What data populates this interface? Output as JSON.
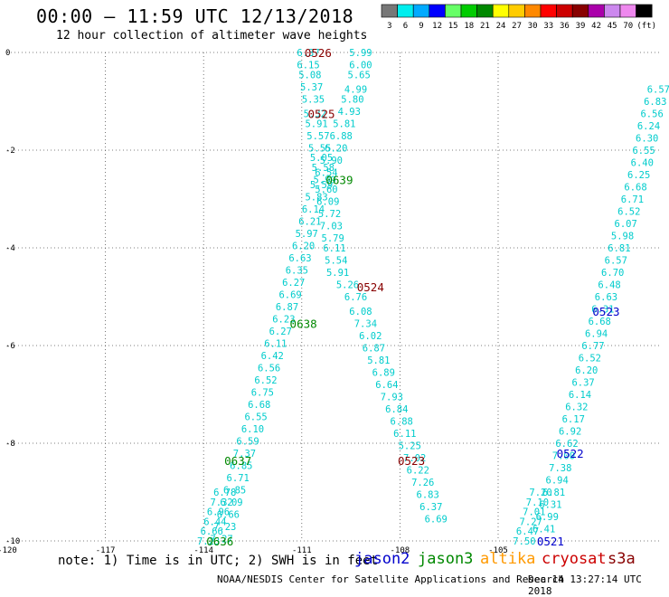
{
  "header": {
    "title": "00:00 – 11:59 UTC 12/13/2018",
    "subtitle": "12 hour collection of altimeter wave heights"
  },
  "color_scale": {
    "unit": "(ft)",
    "bins": [
      {
        "label": "3",
        "color": "#777777"
      },
      {
        "label": "6",
        "color": "#00eeee"
      },
      {
        "label": "9",
        "color": "#00aaff"
      },
      {
        "label": "12",
        "color": "#0000ff"
      },
      {
        "label": "15",
        "color": "#66ff66"
      },
      {
        "label": "18",
        "color": "#00cc00"
      },
      {
        "label": "21",
        "color": "#008800"
      },
      {
        "label": "24",
        "color": "#ffff00"
      },
      {
        "label": "27",
        "color": "#ffcc00"
      },
      {
        "label": "30",
        "color": "#ff8800"
      },
      {
        "label": "33",
        "color": "#ff0000"
      },
      {
        "label": "36",
        "color": "#cc0000"
      },
      {
        "label": "39",
        "color": "#880000"
      },
      {
        "label": "42",
        "color": "#aa00aa"
      },
      {
        "label": "45",
        "color": "#cc88ee"
      },
      {
        "label": "70",
        "color": "#ee88ee"
      },
      {
        "label": "",
        "color": "#000000"
      }
    ]
  },
  "footer": {
    "note": "note: 1) Time is in UTC; 2) SWH is in feet",
    "satellites": [
      {
        "name": "jason2",
        "color": "#0000cc"
      },
      {
        "name": "jason3",
        "color": "#008800"
      },
      {
        "name": "altika",
        "color": "#ff9900"
      },
      {
        "name": "cryosat",
        "color": "#cc0000"
      },
      {
        "name": "s3a",
        "color": "#880000"
      }
    ],
    "credit": "NOAA/NESDIS Center for Satellite Applications and Research",
    "timestamp": "Dec 14 13:27:14 UTC 2018"
  },
  "chart_data": {
    "type": "scatter",
    "xlim": [
      -120,
      -100
    ],
    "ylim": [
      -10,
      0
    ],
    "x_ticks": [
      "-120",
      "-117",
      "-114",
      "-111",
      "-108",
      "-105"
    ],
    "x_tick_values": [
      -120,
      -117,
      -114,
      -111,
      -108,
      -105
    ],
    "y_ticks": [
      "0",
      "-2",
      "-4",
      "-6",
      "-8",
      "-10"
    ],
    "y_tick_values": [
      0,
      -2,
      -4,
      -6,
      -8,
      -10
    ],
    "grid": true,
    "point_color": "#00cccc",
    "tracks": [
      {
        "id": "a",
        "points": [
          [
            -110.8,
            0
          ],
          [
            -110.8,
            -0.25
          ],
          [
            -110.75,
            -0.45
          ],
          [
            -110.7,
            -0.7
          ],
          [
            -110.65,
            -0.95
          ],
          [
            -110.6,
            -1.25
          ],
          [
            -110.55,
            -1.45
          ],
          [
            -110.5,
            -1.7
          ],
          [
            -110.45,
            -1.95
          ],
          [
            -110.4,
            -2.15
          ],
          [
            -110.35,
            -2.35
          ],
          [
            -110.3,
            -2.6
          ],
          [
            -110.25,
            -2.8
          ],
          [
            -110.2,
            -3.05
          ],
          [
            -110.15,
            -3.3
          ],
          [
            -110.1,
            -3.55
          ],
          [
            -110.05,
            -3.8
          ],
          [
            -110.0,
            -4.0
          ],
          [
            -109.95,
            -4.25
          ],
          [
            -109.9,
            -4.5
          ],
          [
            -109.6,
            -4.75
          ],
          [
            -109.35,
            -5.0
          ],
          [
            -109.2,
            -5.3
          ],
          [
            -109.05,
            -5.55
          ],
          [
            -108.9,
            -5.8
          ],
          [
            -108.8,
            -6.05
          ],
          [
            -108.65,
            -6.3
          ],
          [
            -108.5,
            -6.55
          ],
          [
            -108.4,
            -6.8
          ],
          [
            -108.25,
            -7.05
          ],
          [
            -108.1,
            -7.3
          ],
          [
            -107.95,
            -7.55
          ],
          [
            -107.85,
            -7.8
          ],
          [
            -107.7,
            -8.05
          ],
          [
            -107.55,
            -8.3
          ],
          [
            -107.45,
            -8.55
          ],
          [
            -107.3,
            -8.8
          ],
          [
            -107.15,
            -9.05
          ],
          [
            -107.05,
            -9.3
          ],
          [
            -106.9,
            -9.55
          ]
        ],
        "values": [
          "6.37",
          "6.15",
          "5.08",
          "5.37",
          "5.35",
          "5.32",
          "5.91",
          "5.57",
          "5.55",
          "5.05",
          "5.58",
          "5.99",
          "5.60",
          "6.09",
          "5.72",
          "7.03",
          "5.79",
          "6.11",
          "5.54",
          "5.91",
          "5.26",
          "6.76",
          "6.08",
          "7.34",
          "6.02",
          "6.87",
          "5.81",
          "6.89",
          "6.64",
          "7.93",
          "6.84",
          "6.88",
          "6.11",
          "5.25",
          "7.02",
          "6.22",
          "7.26",
          "6.83",
          "6.37",
          "6.69"
        ]
      },
      {
        "id": "b",
        "points": [
          [
            -109.2,
            0
          ],
          [
            -109.2,
            -0.25
          ],
          [
            -109.25,
            -0.45
          ],
          [
            -109.35,
            -0.75
          ],
          [
            -109.45,
            -0.95
          ],
          [
            -109.55,
            -1.2
          ],
          [
            -109.7,
            -1.45
          ],
          [
            -109.8,
            -1.7
          ],
          [
            -109.95,
            -1.95
          ],
          [
            -110.1,
            -2.2
          ],
          [
            -110.25,
            -2.45
          ],
          [
            -110.4,
            -2.7
          ],
          [
            -110.55,
            -2.95
          ],
          [
            -110.65,
            -3.2
          ],
          [
            -110.75,
            -3.45
          ],
          [
            -110.85,
            -3.7
          ],
          [
            -110.95,
            -3.95
          ],
          [
            -111.05,
            -4.2
          ],
          [
            -111.15,
            -4.45
          ],
          [
            -111.25,
            -4.7
          ],
          [
            -111.35,
            -4.95
          ],
          [
            -111.45,
            -5.2
          ],
          [
            -111.55,
            -5.45
          ],
          [
            -111.65,
            -5.7
          ],
          [
            -111.8,
            -5.95
          ],
          [
            -111.9,
            -6.2
          ],
          [
            -112.0,
            -6.45
          ],
          [
            -112.1,
            -6.7
          ],
          [
            -112.2,
            -6.95
          ],
          [
            -112.3,
            -7.2
          ],
          [
            -112.4,
            -7.45
          ],
          [
            -112.5,
            -7.7
          ],
          [
            -112.65,
            -7.95
          ],
          [
            -112.75,
            -8.2
          ],
          [
            -112.85,
            -8.45
          ],
          [
            -112.95,
            -8.7
          ],
          [
            -113.05,
            -8.95
          ],
          [
            -113.15,
            -9.2
          ],
          [
            -113.25,
            -9.45
          ],
          [
            -113.35,
            -9.7
          ],
          [
            -113.45,
            -9.95
          ]
        ],
        "values": [
          "5.99",
          "6.00",
          "5.65",
          "4.99",
          "5.80",
          "4.93",
          "5.81",
          "6.88",
          "6.20",
          "5.90",
          "6.54",
          "5.59",
          "5.83",
          "6.14",
          "6.21",
          "5.97",
          "6.20",
          "6.63",
          "6.35",
          "6.27",
          "6.69",
          "6.87",
          "6.23",
          "6.27",
          "6.11",
          "6.42",
          "6.56",
          "6.52",
          "6.75",
          "6.68",
          "6.55",
          "6.10",
          "6.59",
          "7.37",
          "6.85",
          "6.71",
          "6.85",
          "6.09",
          "6.66",
          "7.23",
          "7.27"
        ]
      },
      {
        "id": "c",
        "points": [
          [
            -113.35,
            -9.0
          ],
          [
            -113.45,
            -9.2
          ],
          [
            -113.55,
            -9.4
          ],
          [
            -113.65,
            -9.6
          ],
          [
            -113.75,
            -9.8
          ],
          [
            -113.85,
            -10.0
          ]
        ],
        "values": [
          "6.78",
          "7.32",
          "6.96",
          "6.44",
          "6.66",
          "7.23"
        ]
      },
      {
        "id": "d",
        "points": [
          [
            -100.1,
            -0.75
          ],
          [
            -100.2,
            -1.0
          ],
          [
            -100.3,
            -1.25
          ],
          [
            -100.4,
            -1.5
          ],
          [
            -100.45,
            -1.75
          ],
          [
            -100.55,
            -2.0
          ],
          [
            -100.6,
            -2.25
          ],
          [
            -100.7,
            -2.5
          ],
          [
            -100.8,
            -2.75
          ],
          [
            -100.9,
            -3.0
          ],
          [
            -101.0,
            -3.25
          ],
          [
            -101.1,
            -3.5
          ],
          [
            -101.2,
            -3.75
          ],
          [
            -101.3,
            -4.0
          ],
          [
            -101.4,
            -4.25
          ],
          [
            -101.5,
            -4.5
          ],
          [
            -101.6,
            -4.75
          ],
          [
            -101.7,
            -5.0
          ],
          [
            -101.8,
            -5.25
          ],
          [
            -101.9,
            -5.5
          ],
          [
            -102.0,
            -5.75
          ],
          [
            -102.1,
            -6.0
          ],
          [
            -102.2,
            -6.25
          ],
          [
            -102.3,
            -6.5
          ],
          [
            -102.4,
            -6.75
          ],
          [
            -102.5,
            -7.0
          ],
          [
            -102.6,
            -7.25
          ],
          [
            -102.7,
            -7.5
          ],
          [
            -102.8,
            -7.75
          ],
          [
            -102.9,
            -8.0
          ],
          [
            -103.0,
            -8.25
          ],
          [
            -103.1,
            -8.5
          ],
          [
            -103.2,
            -8.75
          ],
          [
            -103.3,
            -9.0
          ],
          [
            -103.4,
            -9.25
          ],
          [
            -103.5,
            -9.5
          ],
          [
            -103.6,
            -9.75
          ]
        ],
        "values": [
          "6.57",
          "6.83",
          "6.56",
          "6.24",
          "6.30",
          "6.55",
          "6.40",
          "6.25",
          "6.68",
          "6.71",
          "6.52",
          "6.07",
          "5.98",
          "6.81",
          "6.57",
          "6.70",
          "6.48",
          "6.63",
          "6.31",
          "6.68",
          "6.94",
          "6.77",
          "6.52",
          "6.20",
          "6.37",
          "6.14",
          "6.32",
          "6.17",
          "6.92",
          "6.62",
          "7.00",
          "7.38",
          "6.94",
          "6.81",
          "6.31",
          "6.99",
          "6.41"
        ]
      },
      {
        "id": "e",
        "points": [
          [
            -103.7,
            -9.0
          ],
          [
            -103.8,
            -9.2
          ],
          [
            -103.9,
            -9.4
          ],
          [
            -104.0,
            -9.6
          ],
          [
            -104.1,
            -9.8
          ],
          [
            -104.2,
            -10.0
          ]
        ],
        "values": [
          "7.20",
          "7.10",
          "7.01",
          "7.27",
          "6.47",
          "7.50"
        ]
      }
    ],
    "pass_labels": [
      {
        "text": "0526",
        "x": -110.5,
        "y": 0.0,
        "color": "#880000"
      },
      {
        "text": "0525",
        "x": -110.4,
        "y": -1.25,
        "color": "#880000"
      },
      {
        "text": "0639",
        "x": -109.85,
        "y": -2.6,
        "color": "#008800"
      },
      {
        "text": "0524",
        "x": -108.9,
        "y": -4.8,
        "color": "#880000"
      },
      {
        "text": "0638",
        "x": -110.95,
        "y": -5.55,
        "color": "#008800"
      },
      {
        "text": "0523",
        "x": -101.7,
        "y": -5.3,
        "color": "#0000cc"
      },
      {
        "text": "0522",
        "x": -102.8,
        "y": -8.2,
        "color": "#0000cc"
      },
      {
        "text": "0523",
        "x": -107.65,
        "y": -8.35,
        "color": "#880000"
      },
      {
        "text": "0637",
        "x": -112.95,
        "y": -8.35,
        "color": "#008800"
      },
      {
        "text": "0636",
        "x": -113.5,
        "y": -10.0,
        "color": "#008800"
      },
      {
        "text": "0521",
        "x": -103.4,
        "y": -10.0,
        "color": "#0000cc"
      }
    ]
  }
}
